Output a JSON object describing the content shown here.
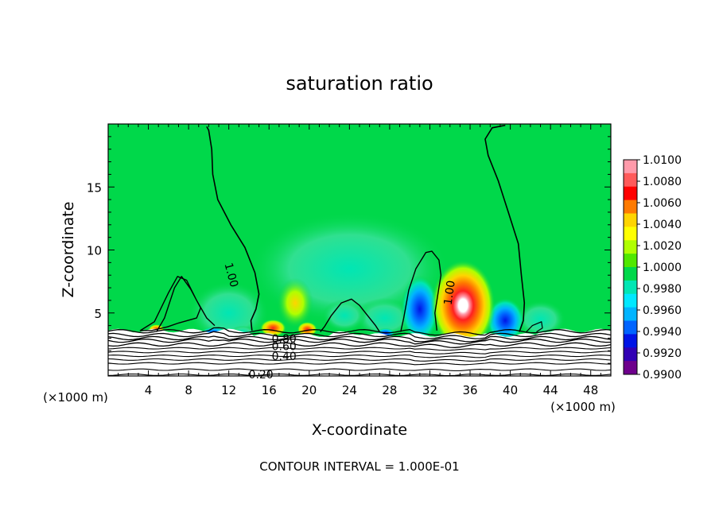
{
  "chart_data": {
    "type": "heatmap",
    "title": "saturation ratio",
    "xlabel": "X-coordinate",
    "ylabel": "Z-coordinate",
    "x_unit": "(×1000 m)",
    "y_unit": "(×1000 m)",
    "xlim": [
      0,
      50
    ],
    "ylim": [
      0,
      20
    ],
    "x_ticks": [
      4,
      8,
      12,
      16,
      20,
      24,
      28,
      32,
      36,
      40,
      44,
      48
    ],
    "y_ticks": [
      5,
      10,
      15
    ],
    "footer": "CONTOUR INTERVAL = 1.000E-01",
    "colorbar": {
      "labels": [
        "1.0100",
        "1.0080",
        "1.0060",
        "1.0040",
        "1.0020",
        "1.0000",
        "0.9980",
        "0.9960",
        "0.9940",
        "0.9920",
        "0.9900"
      ],
      "colors": [
        "#ff9aaa",
        "#ff5a5a",
        "#ff0000",
        "#ff7a00",
        "#ffd400",
        "#ffff00",
        "#b0ff00",
        "#50e800",
        "#00d84a",
        "#00e6b4",
        "#00e8ff",
        "#00b4ff",
        "#0064ff",
        "#0014e6",
        "#3200b4",
        "#6e008c"
      ]
    },
    "contour_labels": [
      {
        "text": "1.00",
        "x": 12.2,
        "y": 8.0,
        "angle": 75
      },
      {
        "text": "1.00",
        "x": 34.0,
        "y": 6.6,
        "angle": -82
      },
      {
        "text": "0.80",
        "x": 17.5,
        "y": 2.9
      },
      {
        "text": "0.60",
        "x": 17.5,
        "y": 2.3
      },
      {
        "text": "0.40",
        "x": 17.5,
        "y": 1.5
      },
      {
        "text": "0.20",
        "x": 15.2,
        "y": 0.05
      }
    ],
    "features": [
      {
        "kind": "positive",
        "x": 35.3,
        "z": 5.4,
        "peak": 1.01
      },
      {
        "kind": "negative",
        "x": 31.0,
        "z": 5.0,
        "peak": 0.994
      },
      {
        "kind": "negative",
        "x": 39.4,
        "z": 4.2,
        "peak": 0.9935
      },
      {
        "kind": "positive",
        "x": 16.4,
        "z": 3.7,
        "peak": 1.006
      },
      {
        "kind": "positive",
        "x": 19.8,
        "z": 3.6,
        "peak": 1.006
      },
      {
        "kind": "positive",
        "x": 18.6,
        "z": 5.6,
        "peak": 1.002
      },
      {
        "kind": "negative",
        "x": 23.5,
        "z": 4.6,
        "peak": 0.9975
      },
      {
        "kind": "negative",
        "x": 27.5,
        "z": 4.4,
        "peak": 0.9978
      }
    ],
    "cloud_base_z": 3.6,
    "background_value": 1.0
  }
}
